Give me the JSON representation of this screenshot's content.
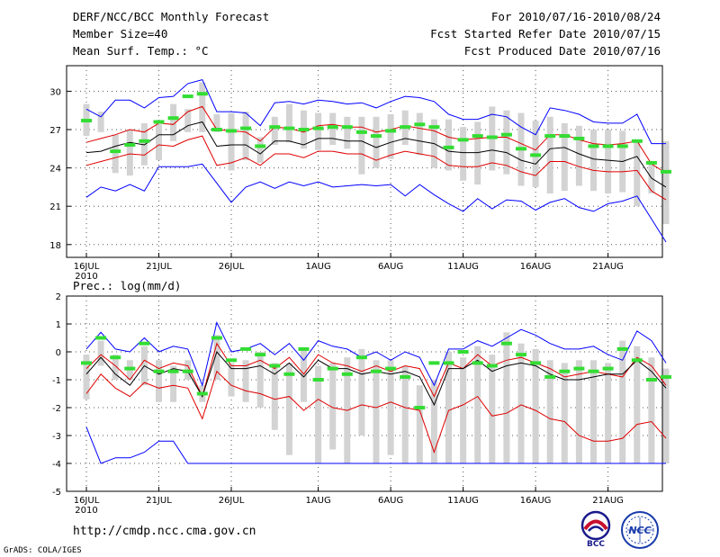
{
  "header": {
    "title": "DERF/NCC/BCC Monthly Forecast",
    "member_size": "Member Size=40",
    "variable": "Mean Surf. Temp.: °C",
    "period": "For 2010/07/16-2010/08/24",
    "refer_date": "Fcst Started Refer Date 2010/07/15",
    "produced_date": "Fcst Produced Date 2010/07/16"
  },
  "footer": {
    "url": "http://cmdp.ncc.cma.gov.cn",
    "grads_credit": "GrADS: COLA/IGES",
    "bcc_logo_text": "BCC",
    "ncc_logo_text": "NCC"
  },
  "colors": {
    "max_min": "#0000ff",
    "mean": "#000000",
    "spread": "#e00000",
    "box": "#d3d3d3",
    "median": "#33dd33"
  },
  "chart_data": [
    {
      "type": "line",
      "title": "Mean Surf. Temp.: °C",
      "days": 40,
      "ylim": [
        17,
        32
      ],
      "yticks": [
        18,
        21,
        24,
        27,
        30
      ],
      "ytick_labels": [
        "18",
        "21",
        "24",
        "27",
        "30"
      ],
      "xticks": [
        {
          "day": 0,
          "label": "16JUL",
          "sub": "2010"
        },
        {
          "day": 5,
          "label": "21JUL"
        },
        {
          "day": 10,
          "label": "26JUL"
        },
        {
          "day": 16,
          "label": "1AUG"
        },
        {
          "day": 21,
          "label": "6AUG"
        },
        {
          "day": 26,
          "label": "11AUG"
        },
        {
          "day": 31,
          "label": "16AUG"
        },
        {
          "day": 36,
          "label": "21AUG"
        }
      ],
      "series": [
        {
          "name": "max",
          "values": [
            28.6,
            28.0,
            29.3,
            29.3,
            28.7,
            29.5,
            29.6,
            30.6,
            30.9,
            28.4,
            28.4,
            28.3,
            27.3,
            29.1,
            29.2,
            29.0,
            29.3,
            29.2,
            29.0,
            29.1,
            28.7,
            29.2,
            29.6,
            29.5,
            29.2,
            28.2,
            27.8,
            27.8,
            28.2,
            28.0,
            27.2,
            26.6,
            28.7,
            28.5,
            28.2,
            27.6,
            27.5,
            27.5,
            28.2,
            25.9,
            25.9
          ]
        },
        {
          "name": "upper",
          "values": [
            26.0,
            26.3,
            26.6,
            27.0,
            26.8,
            27.5,
            27.4,
            28.4,
            28.8,
            27.0,
            26.9,
            26.8,
            26.1,
            27.2,
            27.1,
            26.8,
            27.3,
            27.4,
            27.2,
            27.2,
            26.8,
            27.0,
            27.3,
            27.1,
            26.9,
            26.4,
            26.2,
            26.3,
            26.4,
            26.4,
            25.9,
            25.4,
            26.6,
            26.6,
            26.2,
            25.9,
            25.8,
            25.9,
            26.1,
            24.3,
            23.6
          ]
        },
        {
          "name": "mean",
          "values": [
            25.2,
            25.3,
            25.7,
            26.0,
            25.8,
            26.6,
            26.6,
            27.3,
            27.6,
            25.7,
            25.8,
            25.8,
            25.1,
            26.1,
            26.1,
            25.8,
            26.3,
            26.3,
            26.1,
            26.1,
            25.6,
            26.0,
            26.3,
            26.1,
            25.9,
            25.3,
            25.2,
            25.2,
            25.4,
            25.2,
            24.6,
            24.3,
            25.5,
            25.6,
            25.1,
            24.7,
            24.6,
            24.5,
            24.9,
            23.2,
            22.5
          ]
        },
        {
          "name": "lower",
          "values": [
            24.2,
            24.5,
            24.8,
            25.1,
            25.0,
            25.8,
            25.7,
            26.2,
            26.5,
            24.2,
            24.4,
            24.8,
            24.2,
            25.1,
            25.1,
            24.8,
            25.3,
            25.3,
            25.1,
            25.1,
            24.6,
            25.0,
            25.3,
            25.1,
            24.9,
            24.2,
            24.1,
            24.1,
            24.4,
            24.2,
            23.7,
            23.4,
            24.5,
            24.5,
            24.1,
            23.8,
            23.7,
            23.7,
            23.8,
            22.2,
            21.5
          ]
        },
        {
          "name": "min",
          "values": [
            21.7,
            22.5,
            22.2,
            22.7,
            22.2,
            24.1,
            24.1,
            24.1,
            24.3,
            22.8,
            21.3,
            22.5,
            22.9,
            22.4,
            22.9,
            22.6,
            22.9,
            22.5,
            22.6,
            22.7,
            22.6,
            22.7,
            21.8,
            22.7,
            21.9,
            21.2,
            20.6,
            21.6,
            20.8,
            21.5,
            21.4,
            20.7,
            21.3,
            21.6,
            20.9,
            20.6,
            21.2,
            21.4,
            21.8,
            20.0,
            18.2
          ]
        }
      ],
      "boxes": [
        [
          26.5,
          29.0
        ],
        [
          26.8,
          28.4
        ],
        [
          23.6,
          26.6
        ],
        [
          23.4,
          27.0
        ],
        [
          24.2,
          27.5
        ],
        [
          24.6,
          27.4
        ],
        [
          26.1,
          29.0
        ],
        [
          26.8,
          28.6
        ],
        [
          26.8,
          30.7
        ],
        [
          26.8,
          28.2
        ],
        [
          23.8,
          28.3
        ],
        [
          24.6,
          28.4
        ],
        [
          24.4,
          26.4
        ],
        [
          25.8,
          28.0
        ],
        [
          26.0,
          29.0
        ],
        [
          25.5,
          28.5
        ],
        [
          25.4,
          28.3
        ],
        [
          25.8,
          28.3
        ],
        [
          25.5,
          28.0
        ],
        [
          23.5,
          28.0
        ],
        [
          24.0,
          28.0
        ],
        [
          24.7,
          28.2
        ],
        [
          25.8,
          28.5
        ],
        [
          25.0,
          28.3
        ],
        [
          24.0,
          27.8
        ],
        [
          23.8,
          27.8
        ],
        [
          23.0,
          27.2
        ],
        [
          22.7,
          27.6
        ],
        [
          23.8,
          28.8
        ],
        [
          23.5,
          28.5
        ],
        [
          22.6,
          28.3
        ],
        [
          22.5,
          27.7
        ],
        [
          22.0,
          28.0
        ],
        [
          22.2,
          27.5
        ],
        [
          22.6,
          27.3
        ],
        [
          22.2,
          27.0
        ],
        [
          22.0,
          27.0
        ],
        [
          22.1,
          26.9
        ],
        [
          21.0,
          26.0
        ],
        [
          22.0,
          24.5
        ],
        [
          19.6,
          26.1
        ]
      ],
      "medians": [
        27.7,
        null,
        25.3,
        25.8,
        26.1,
        27.6,
        27.9,
        29.6,
        29.8,
        27.0,
        26.9,
        27.1,
        25.7,
        27.2,
        27.1,
        27.0,
        27.1,
        27.2,
        27.2,
        26.8,
        26.5,
        26.9,
        27.2,
        27.4,
        27.2,
        25.6,
        26.2,
        26.5,
        26.4,
        26.6,
        25.5,
        25.0,
        26.5,
        26.5,
        26.3,
        25.7,
        25.7,
        25.7,
        26.1,
        24.4,
        23.7
      ]
    },
    {
      "type": "line",
      "title": "Prec.: log(mm/d)",
      "days": 40,
      "ylim": [
        -5,
        2
      ],
      "yticks": [
        -5,
        -4,
        -3,
        -2,
        -1,
        0,
        1,
        2
      ],
      "ytick_labels": [
        "-5",
        "-4",
        "-3",
        "-2",
        "-1",
        "0",
        "1",
        "2"
      ],
      "xticks": [
        {
          "day": 0,
          "label": "16JUL",
          "sub": "2010"
        },
        {
          "day": 5,
          "label": "21JUL"
        },
        {
          "day": 10,
          "label": "26JUL"
        },
        {
          "day": 16,
          "label": "1AUG"
        },
        {
          "day": 21,
          "label": "6AUG"
        },
        {
          "day": 26,
          "label": "11AUG"
        },
        {
          "day": 31,
          "label": "16AUG"
        },
        {
          "day": 36,
          "label": "21AUG"
        }
      ],
      "series": [
        {
          "name": "max",
          "values": [
            0.1,
            0.7,
            0.1,
            0.0,
            0.5,
            0.0,
            0.2,
            0.1,
            -1.2,
            1.05,
            0.0,
            0.1,
            0.3,
            -0.1,
            0.3,
            -0.3,
            0.4,
            0.2,
            0.1,
            -0.2,
            0.0,
            -0.3,
            0.0,
            -0.2,
            -1.2,
            0.1,
            0.1,
            0.4,
            0.2,
            0.5,
            0.8,
            0.6,
            0.3,
            0.1,
            0.1,
            0.2,
            -0.1,
            -0.3,
            0.75,
            0.4,
            -0.4
          ]
        },
        {
          "name": "upper",
          "values": [
            -0.6,
            -0.1,
            -0.5,
            -1.0,
            -0.3,
            -0.6,
            -0.4,
            -0.5,
            -1.6,
            0.3,
            -0.5,
            -0.5,
            -0.3,
            -0.6,
            -0.2,
            -0.8,
            -0.1,
            -0.4,
            -0.5,
            -0.7,
            -0.5,
            -0.7,
            -0.5,
            -0.6,
            -1.6,
            -0.4,
            -0.6,
            -0.1,
            -0.5,
            -0.3,
            -0.2,
            -0.4,
            -0.6,
            -0.9,
            -0.8,
            -0.7,
            -0.8,
            -0.9,
            -0.2,
            -0.5,
            -1.2
          ]
        },
        {
          "name": "mean",
          "values": [
            -0.8,
            -0.2,
            -0.8,
            -1.2,
            -0.5,
            -0.8,
            -0.6,
            -0.7,
            -1.6,
            0.0,
            -0.6,
            -0.6,
            -0.5,
            -0.8,
            -0.4,
            -0.9,
            -0.3,
            -0.6,
            -0.6,
            -0.8,
            -0.7,
            -0.8,
            -0.7,
            -0.9,
            -1.9,
            -0.6,
            -0.6,
            -0.3,
            -0.7,
            -0.5,
            -0.4,
            -0.5,
            -0.8,
            -1.0,
            -1.0,
            -0.9,
            -0.8,
            -0.8,
            -0.3,
            -0.7,
            -1.3
          ]
        },
        {
          "name": "lower",
          "values": [
            -1.5,
            -0.8,
            -1.3,
            -1.6,
            -1.1,
            -1.3,
            -1.2,
            -1.3,
            -2.4,
            -0.7,
            -1.2,
            -1.4,
            -1.5,
            -1.7,
            -1.6,
            -2.1,
            -1.7,
            -2.0,
            -2.1,
            -1.9,
            -2.0,
            -1.8,
            -2.0,
            -2.1,
            -3.6,
            -2.1,
            -1.9,
            -1.6,
            -2.3,
            -2.2,
            -1.9,
            -2.1,
            -2.4,
            -2.5,
            -3.0,
            -3.2,
            -3.2,
            -3.1,
            -2.6,
            -2.5,
            -3.1
          ]
        },
        {
          "name": "min",
          "values": [
            -2.7,
            -4.0,
            -3.8,
            -3.8,
            -3.6,
            -3.2,
            -3.2,
            -4.0,
            -4.0,
            -4.0,
            -4.0,
            -4.0,
            -4.0,
            -4.0,
            -4.0,
            -4.0,
            -4.0,
            -4.0,
            -4.0,
            -4.0,
            -4.0,
            -4.0,
            -4.0,
            -4.0,
            -4.0,
            -4.0,
            -4.0,
            -4.0,
            -4.0,
            -4.0,
            -4.0,
            -4.0,
            -4.0,
            -4.0,
            -4.0,
            -4.0,
            -4.0,
            -4.0,
            -4.0,
            -4.0,
            -4.0
          ]
        },
        {
          "name": "median",
          "values": [
            -0.4,
            0.5,
            -0.2,
            -0.6,
            0.3,
            -0.7,
            -0.7,
            -0.7,
            -1.5,
            0.5,
            -0.3,
            0.1,
            -0.1,
            -0.5,
            -0.8,
            0.1,
            -1.0,
            -0.6,
            -0.8,
            -0.2,
            -0.7,
            -0.6,
            -0.9,
            -2.0,
            -0.4,
            -0.4,
            0.0,
            -0.4,
            -0.5,
            0.3,
            -0.1,
            -0.4,
            -0.9,
            -0.7,
            -0.6,
            -0.7,
            -0.6,
            0.1,
            -0.3,
            -1.0,
            -0.9
          ]
        }
      ],
      "boxes": [
        [
          -1.7,
          -0.1
        ],
        [
          -0.5,
          0.4
        ],
        [
          -1.0,
          -0.1
        ],
        [
          -1.0,
          -0.3
        ],
        [
          -1.2,
          0.2
        ],
        [
          -1.8,
          -0.3
        ],
        [
          -1.8,
          -0.5
        ],
        [
          -1.0,
          -0.3
        ],
        [
          -1.8,
          -1.2
        ],
        [
          -1.0,
          0.6
        ],
        [
          -1.6,
          -0.4
        ],
        [
          -1.8,
          -0.3
        ],
        [
          -2.0,
          0.0
        ],
        [
          -2.8,
          -0.4
        ],
        [
          -3.7,
          -0.4
        ],
        [
          -1.8,
          0.1
        ],
        [
          -4.0,
          -0.5
        ],
        [
          -3.5,
          -0.4
        ],
        [
          -4.0,
          -0.2
        ],
        [
          -3.0,
          0.1
        ],
        [
          -4.0,
          -0.3
        ],
        [
          -3.7,
          -0.3
        ],
        [
          -4.0,
          -0.5
        ],
        [
          -4.0,
          -1.2
        ],
        [
          -4.0,
          -1.0
        ],
        [
          -4.0,
          0.0
        ],
        [
          -4.0,
          -0.2
        ],
        [
          -4.0,
          0.2
        ],
        [
          -4.0,
          -0.1
        ],
        [
          -4.0,
          0.7
        ],
        [
          -4.0,
          0.3
        ],
        [
          -4.0,
          0.1
        ],
        [
          -4.0,
          -0.3
        ],
        [
          -4.0,
          -0.4
        ],
        [
          -4.0,
          -0.3
        ],
        [
          -4.0,
          -0.3
        ],
        [
          -4.0,
          -0.4
        ],
        [
          -4.0,
          0.4
        ],
        [
          -4.0,
          0.2
        ],
        [
          -4.0,
          -0.2
        ],
        [
          -4.0,
          -0.6
        ]
      ]
    }
  ]
}
